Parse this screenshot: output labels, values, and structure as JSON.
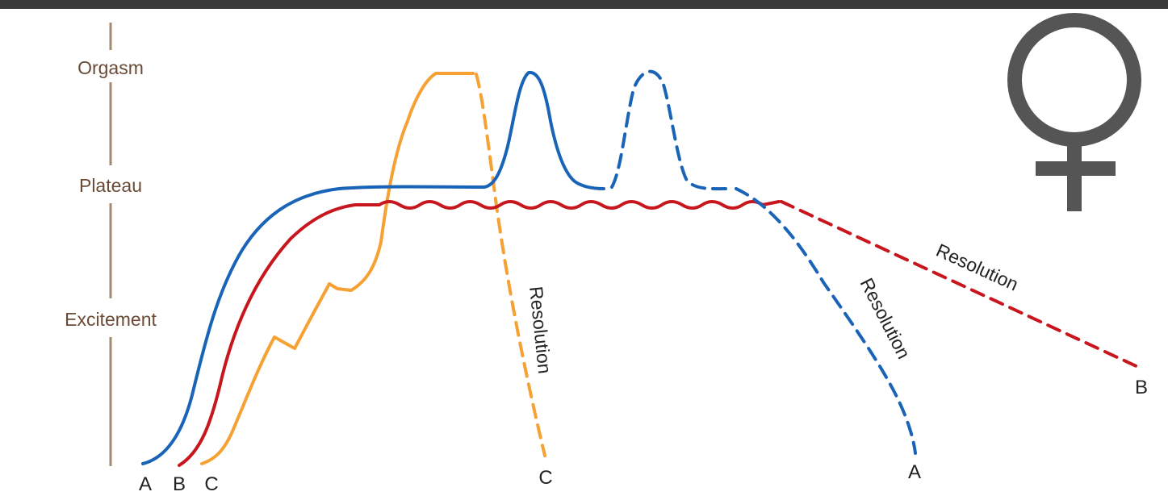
{
  "phases": {
    "orgasm": "Orgasm",
    "plateau": "Plateau",
    "excitement": "Excitement"
  },
  "curves": {
    "A": {
      "label": "A",
      "color": "#1a64b8",
      "resolution_label": "Resolution"
    },
    "B": {
      "label": "B",
      "color": "#c7161e",
      "resolution_label": "Resolution"
    },
    "C": {
      "label": "C",
      "color": "#f5a133",
      "resolution_label": "Resolution"
    }
  },
  "colors": {
    "axis": "#a08a72",
    "top_rule": "#3a3a3a",
    "symbol": "#555555",
    "phase_text": "#6b4a36"
  },
  "symbol": {
    "icon": "female-venus-symbol"
  }
}
